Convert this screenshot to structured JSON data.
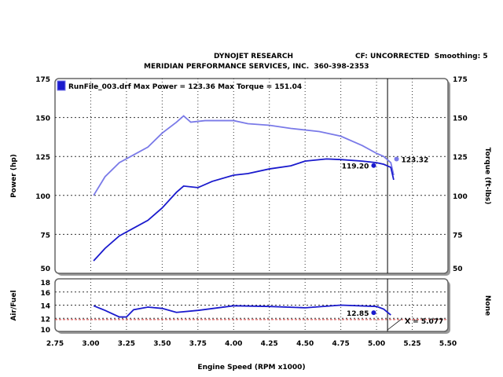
{
  "header": {
    "title": "DYNOJET RESEARCH",
    "subtitle": "MERIDIAN PERFORMANCE SERVICES, INC.  360-398-2353",
    "correction": "CF: UNCORRECTED  Smoothing: 5"
  },
  "chart_data": [
    {
      "type": "line",
      "legend": "RunFile_003.drf Max Power = 123.36     Max Torque = 151.04",
      "legend_placement": "top-left",
      "xlabel": "Engine Speed (RPM x1000)",
      "ylabel": "Power (hp)",
      "ylabel_right": "Torque (ft-lbs)",
      "xlim": [
        2.75,
        5.5
      ],
      "ylim": [
        50,
        175
      ],
      "x_ticks": [
        "2.75",
        "3.00",
        "3.25",
        "3.50",
        "3.75",
        "4.00",
        "4.25",
        "4.50",
        "4.75",
        "5.00",
        "5.25",
        "5.50"
      ],
      "y_ticks": [
        "50",
        "75",
        "100",
        "125",
        "150",
        "175"
      ],
      "grid": true,
      "series": [
        {
          "name": "Power",
          "color": "#1a1acd",
          "x": [
            3.02,
            3.1,
            3.2,
            3.3,
            3.4,
            3.5,
            3.6,
            3.65,
            3.75,
            3.85,
            4.0,
            4.1,
            4.25,
            4.4,
            4.5,
            4.65,
            4.75,
            4.9,
            5.0,
            5.05,
            5.1,
            5.12
          ],
          "y": [
            58,
            66,
            74,
            79,
            84,
            92,
            102,
            106,
            105,
            109,
            113,
            114,
            117,
            119,
            122,
            123.4,
            123,
            122,
            121,
            120,
            118,
            110
          ]
        },
        {
          "name": "Torque",
          "color": "#7a7ae8",
          "x": [
            3.02,
            3.1,
            3.2,
            3.3,
            3.4,
            3.5,
            3.6,
            3.65,
            3.7,
            3.8,
            4.0,
            4.1,
            4.25,
            4.4,
            4.6,
            4.75,
            4.9,
            5.0,
            5.05,
            5.1,
            5.12
          ],
          "y": [
            100,
            112,
            121,
            126,
            131,
            140,
            147,
            151,
            147,
            148,
            148,
            146,
            145,
            143,
            141,
            138,
            132,
            127,
            125,
            121,
            113
          ]
        }
      ],
      "annotations": [
        {
          "text": "119.20",
          "x": 4.98,
          "y": 119.2,
          "series": "Power"
        },
        {
          "text": "123.32",
          "x": 5.14,
          "y": 123.32,
          "series": "Torque"
        }
      ],
      "cursor_x": 5.077
    },
    {
      "type": "line",
      "ylabel": "Air/Fuel",
      "ylabel_right": "None",
      "xlim": [
        2.75,
        5.5
      ],
      "ylim": [
        10,
        18
      ],
      "y_ticks": [
        "10",
        "12",
        "14",
        "16",
        "18"
      ],
      "reference_line": 11.8,
      "series": [
        {
          "name": "Air/Fuel",
          "color": "#1a1acd",
          "x": [
            3.02,
            3.1,
            3.2,
            3.25,
            3.3,
            3.4,
            3.5,
            3.6,
            3.75,
            4.0,
            4.25,
            4.5,
            4.75,
            5.0,
            5.05,
            5.1
          ],
          "y": [
            13.9,
            13.2,
            12.2,
            12.2,
            13.3,
            13.7,
            13.5,
            12.9,
            13.2,
            13.9,
            13.8,
            13.6,
            14.0,
            13.8,
            13.4,
            12.5
          ]
        }
      ],
      "annotations": [
        {
          "text": "12.85",
          "x": 4.98,
          "y": 12.85
        }
      ],
      "cursor_label": "X = 5.077"
    }
  ]
}
